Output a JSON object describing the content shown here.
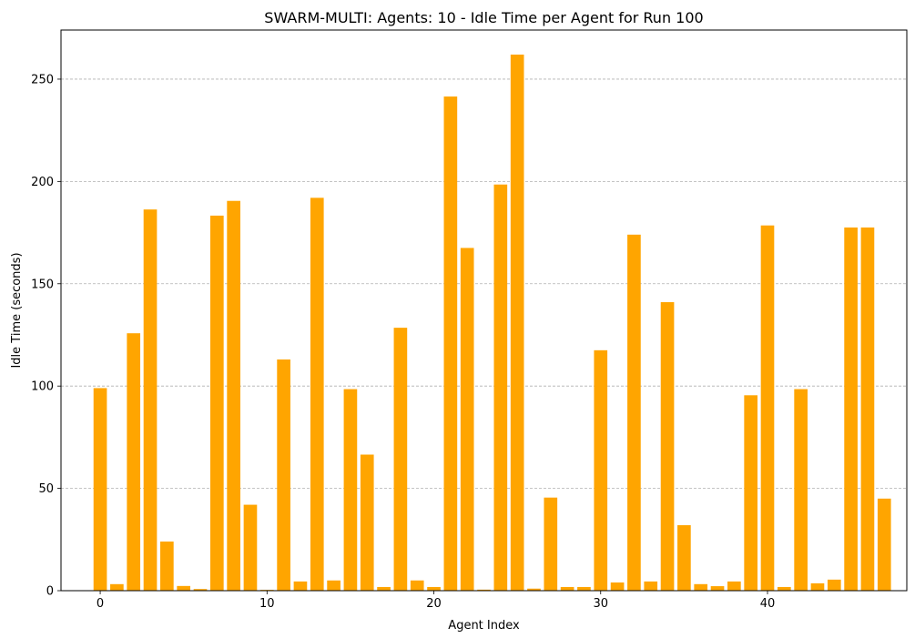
{
  "chart_data": {
    "type": "bar",
    "title": "SWARM-MULTI: Agents: 10 - Idle Time per Agent for Run 100",
    "xlabel": "Agent Index",
    "ylabel": "Idle Time (seconds)",
    "xlim": [
      -2.35,
      48.35
    ],
    "ylim": [
      0,
      274
    ],
    "x_ticks": [
      0,
      10,
      20,
      30,
      40
    ],
    "y_ticks": [
      0,
      50,
      100,
      150,
      200,
      250
    ],
    "grid": "y-dashed",
    "bar_color": "#FFA500",
    "x": [
      0,
      1,
      2,
      3,
      4,
      5,
      6,
      7,
      8,
      9,
      10,
      11,
      12,
      13,
      14,
      15,
      16,
      17,
      18,
      19,
      20,
      21,
      22,
      23,
      24,
      25,
      26,
      27,
      28,
      29,
      30,
      31,
      32,
      33,
      34,
      35,
      36,
      37,
      38,
      39,
      40,
      41,
      42,
      43,
      44,
      45,
      46,
      47
    ],
    "values": [
      99,
      3.2,
      125.8,
      186.3,
      24,
      2.3,
      0.8,
      183.3,
      190.5,
      42,
      0.4,
      113,
      4.5,
      192,
      5,
      98.5,
      66.5,
      1.8,
      128.5,
      5,
      1.8,
      241.5,
      167.5,
      0.5,
      198.5,
      262,
      1,
      45.5,
      1.8,
      1.8,
      117.5,
      4,
      174,
      4.5,
      141,
      32,
      3.2,
      2.2,
      4.5,
      95.5,
      178.5,
      1.8,
      98.5,
      3.6,
      5.4,
      177.5,
      177.5,
      45
    ]
  }
}
